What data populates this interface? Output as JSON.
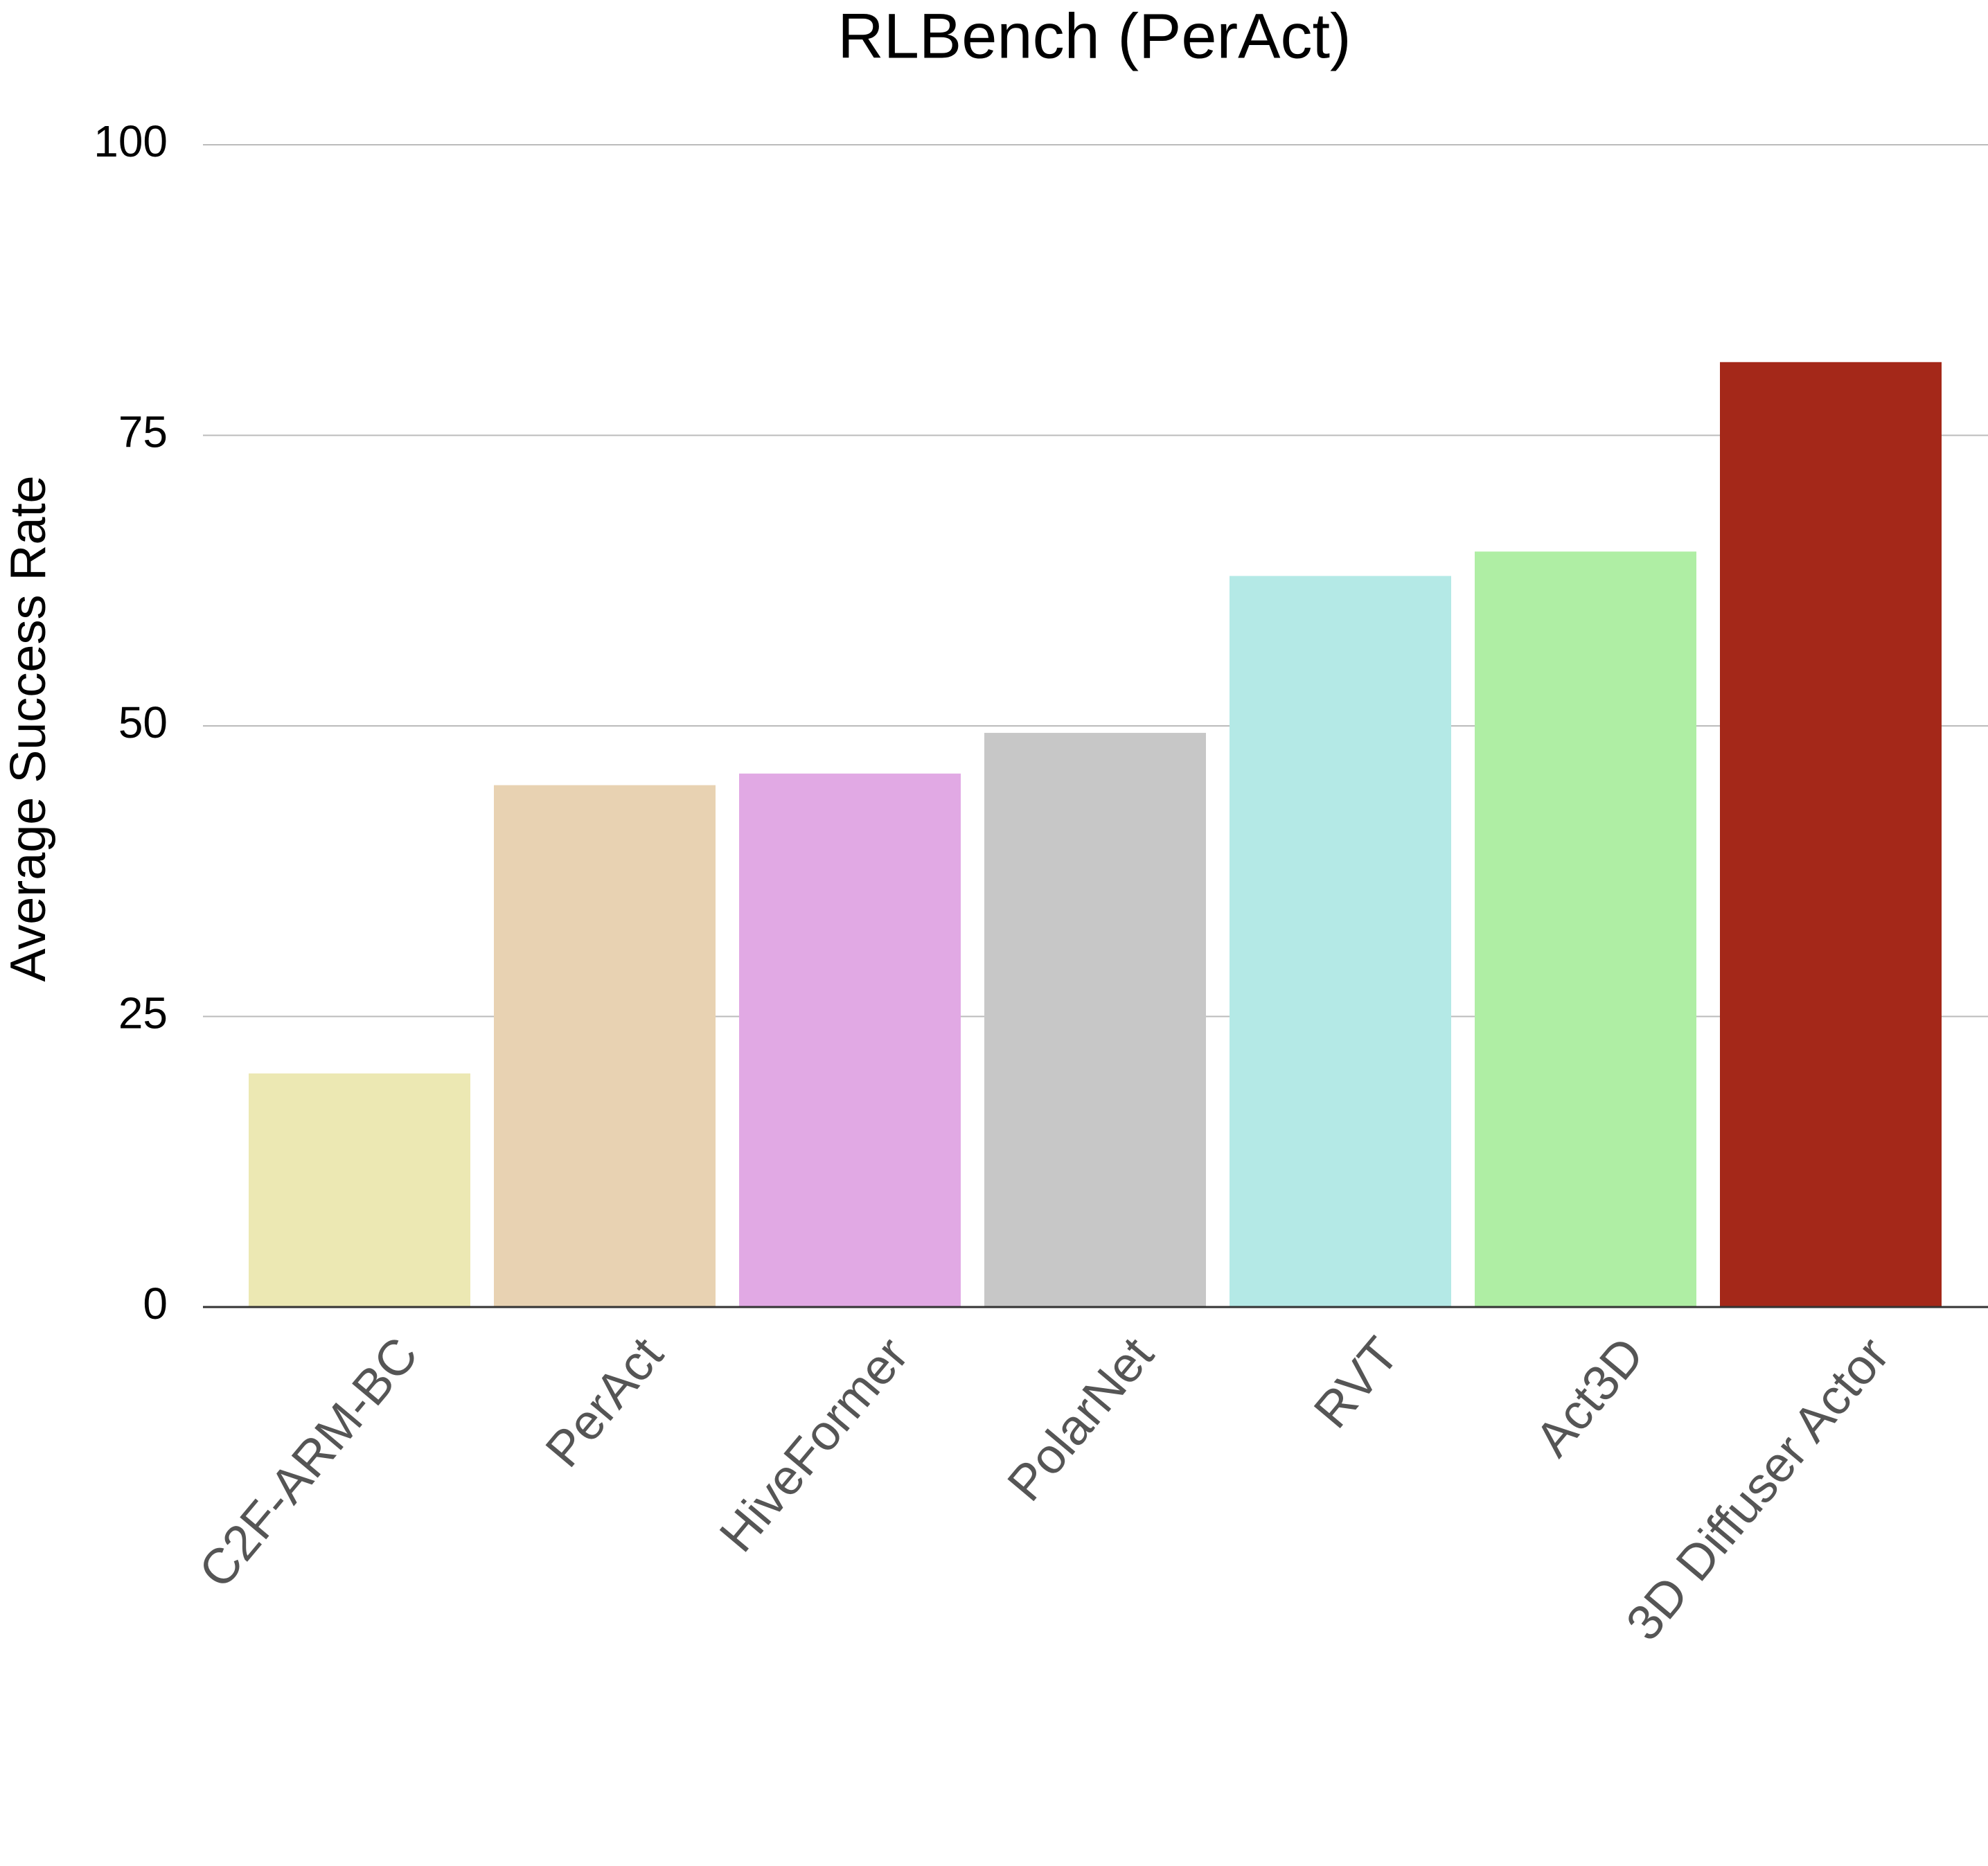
{
  "chart_data": {
    "type": "bar",
    "title": "RLBench (PerAct)",
    "y_label": "Average Success Rate",
    "categories": [
      "C2F-ARM-BC",
      "PerAct",
      "HiveFormer",
      "PolarNet",
      "RVT",
      "Act3D",
      "3D Diffuser Actor"
    ],
    "values": [
      20.1,
      44.9,
      45.9,
      49.4,
      62.9,
      65.0,
      81.3
    ],
    "colors": [
      "#ece8b3",
      "#e8d2b2",
      "#e1a9e4",
      "#c7c7c7",
      "#b4e9e6",
      "#afeea4",
      "#a42819"
    ],
    "ylim": [
      0,
      100
    ],
    "yticks": [
      0,
      25,
      50,
      75,
      100
    ],
    "grid": true
  }
}
